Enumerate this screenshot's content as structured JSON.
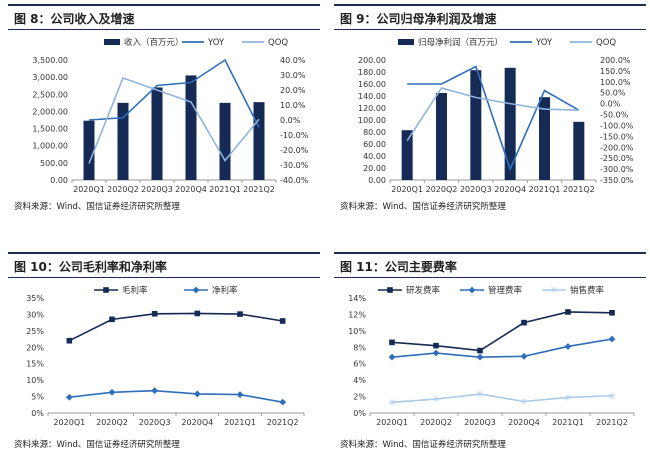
{
  "colors": {
    "navy": "#152a55",
    "blue": "#2f6eba",
    "light": "#8fb4dd",
    "sky": "#a9cbea"
  },
  "panels": [
    {
      "title": "图 8：公司收入及增速",
      "source": "资料来源：Wind、国信证券经济研究所整理"
    },
    {
      "title": "图 9：公司归母净利润及增速",
      "source": "资料来源：Wind、国信证券经济研究所整理"
    },
    {
      "title": "图 10：公司毛利率和净利率",
      "source": "资料来源：Wind、国信证券经济研究所整理"
    },
    {
      "title": "图 11：公司主要费率",
      "source": "资料来源：Wind、国信证券经济研究所整理"
    }
  ],
  "chart_data": [
    {
      "type": "bar",
      "categories": [
        "2020Q1",
        "2020Q2",
        "2020Q3",
        "2020Q4",
        "2021Q1",
        "2021Q2"
      ],
      "bar_series": {
        "name": "收入（百万元）",
        "values": [
          1730,
          2250,
          2700,
          3050,
          2250,
          2270
        ]
      },
      "line_series": [
        {
          "name": "YOY",
          "values": [
            0.0,
            1.5,
            23.0,
            25.0,
            40.0,
            -5.0
          ]
        },
        {
          "name": "QOQ",
          "values": [
            -29.0,
            28.0,
            20.0,
            12.0,
            -27.0,
            0.5
          ]
        }
      ],
      "ylim": [
        0,
        3500
      ],
      "yticks": [
        0,
        500,
        1000,
        1500,
        2000,
        2500,
        3000,
        3500
      ],
      "ytick_labels": [
        "0.00",
        "500.00",
        "1,000.00",
        "1,500.00",
        "2,000.00",
        "2,500.00",
        "3,000.00",
        "3,500.00"
      ],
      "y2lim": [
        -40,
        40
      ],
      "y2ticks": [
        -40,
        -30,
        -20,
        -10,
        0,
        10,
        20,
        30,
        40
      ],
      "y2tick_labels": [
        "-40.0%",
        "-30.0%",
        "-20.0%",
        "-10.0%",
        "0.0%",
        "10.0%",
        "20.0%",
        "30.0%",
        "40.0%"
      ]
    },
    {
      "type": "bar",
      "categories": [
        "2020Q1",
        "2020Q2",
        "2020Q3",
        "2020Q4",
        "2021Q1",
        "2021Q2"
      ],
      "bar_series": {
        "name": "归母净利润（百万元）",
        "values": [
          83,
          145,
          183,
          187,
          138,
          97
        ]
      },
      "line_series": [
        {
          "name": "YOY",
          "values": [
            90,
            90,
            170,
            -300,
            60,
            -30
          ]
        },
        {
          "name": "QOQ",
          "values": [
            -170,
            72,
            28,
            0,
            -25,
            -30
          ]
        }
      ],
      "ylim": [
        0,
        200
      ],
      "yticks": [
        0,
        20,
        40,
        60,
        80,
        100,
        120,
        140,
        160,
        180,
        200
      ],
      "ytick_labels": [
        "0.00",
        "20.00",
        "40.00",
        "60.00",
        "80.00",
        "100.00",
        "120.00",
        "140.00",
        "160.00",
        "180.00",
        "200.00"
      ],
      "y2lim": [
        -350,
        200
      ],
      "y2ticks": [
        -350,
        -300,
        -250,
        -200,
        -150,
        -100,
        -50,
        0,
        50,
        100,
        150,
        200
      ],
      "y2tick_labels": [
        "-350.0%",
        "-300.0%",
        "-250.0%",
        "-200.0%",
        "-150.0%",
        "-100.0%",
        "-50.0%",
        "0.0%",
        "50.0%",
        "100.0%",
        "150.0%",
        "200.0%"
      ]
    },
    {
      "type": "line",
      "categories": [
        "2020Q1",
        "2020Q2",
        "2020Q3",
        "2020Q4",
        "2021Q1",
        "2021Q2"
      ],
      "series": [
        {
          "name": "毛利率",
          "values": [
            22.0,
            28.5,
            30.2,
            30.3,
            30.1,
            28.0
          ]
        },
        {
          "name": "净利率",
          "values": [
            4.8,
            6.3,
            6.8,
            5.8,
            5.6,
            3.3
          ]
        }
      ],
      "ylim": [
        0,
        35
      ],
      "yticks": [
        0,
        5,
        10,
        15,
        20,
        25,
        30,
        35
      ],
      "ytick_labels": [
        "0%",
        "5%",
        "10%",
        "15%",
        "20%",
        "25%",
        "30%",
        "35%"
      ]
    },
    {
      "type": "line",
      "categories": [
        "2020Q1",
        "2020Q2",
        "2020Q3",
        "2020Q4",
        "2021Q1",
        "2021Q2"
      ],
      "series": [
        {
          "name": "研发费率",
          "values": [
            8.6,
            8.2,
            7.6,
            11.0,
            12.3,
            12.2
          ]
        },
        {
          "name": "管理费率",
          "values": [
            6.8,
            7.3,
            6.8,
            6.9,
            8.1,
            9.0
          ]
        },
        {
          "name": "销售费率",
          "values": [
            1.3,
            1.7,
            2.3,
            1.4,
            1.9,
            2.1
          ]
        }
      ],
      "ylim": [
        0,
        14
      ],
      "yticks": [
        0,
        2,
        4,
        6,
        8,
        10,
        12,
        14
      ],
      "ytick_labels": [
        "0%",
        "2%",
        "4%",
        "6%",
        "8%",
        "10%",
        "12%",
        "14%"
      ]
    }
  ]
}
